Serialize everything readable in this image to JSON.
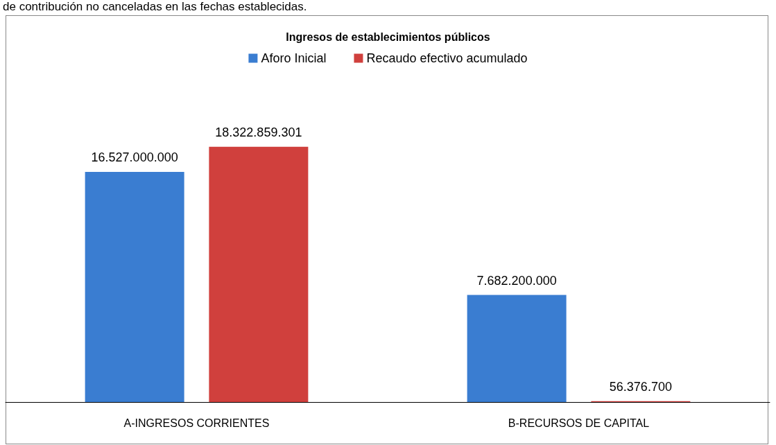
{
  "chart_data": {
    "type": "bar",
    "title": "Ingresos de establecimientos públicos",
    "annotations": [
      "de contribución no canceladas en las fechas establecidas."
    ],
    "categories": [
      "A-INGRESOS CORRIENTES",
      "B-RECURSOS DE CAPITAL"
    ],
    "series": [
      {
        "name": "Aforo Inicial",
        "color": "#3a7dd1",
        "values": [
          16527000000,
          7682200000
        ],
        "value_labels": [
          "16.527.000.000",
          "7.682.200.000"
        ]
      },
      {
        "name": "Recaudo efectivo acumulado",
        "color": "#d0403d",
        "values": [
          18322859301,
          56376700
        ],
        "value_labels": [
          "18.322.859.301",
          "56.376.700"
        ]
      }
    ],
    "legend": "top"
  }
}
